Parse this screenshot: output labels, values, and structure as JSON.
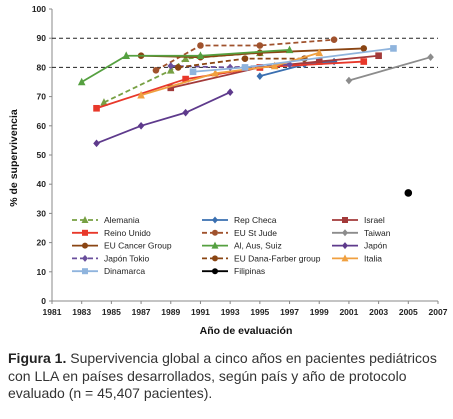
{
  "caption": {
    "label": "Figura 1.",
    "text": "Supervivencia global a cinco años en pacientes pediátricos con LLA en países desarrollados, según país y año de protocolo evaluado (n = 45,407 pacientes)."
  },
  "chart_data": {
    "type": "line",
    "xlabel": "Año de evaluación",
    "ylabel": "% de supervivencia",
    "xlim": [
      1981,
      2007
    ],
    "ylim": [
      0,
      100
    ],
    "xticks": [
      1981,
      1983,
      1985,
      1987,
      1989,
      1991,
      1993,
      1995,
      1997,
      1999,
      2001,
      2003,
      2005,
      2007
    ],
    "yticks": [
      0,
      10,
      20,
      30,
      40,
      50,
      60,
      70,
      80,
      90,
      100
    ],
    "xtick_labels": [
      "1981",
      "1983",
      "1985",
      "1987",
      "1989",
      "1991",
      "1993",
      "1995",
      "1997",
      "1999",
      "2001",
      "2003",
      "2005",
      "2007"
    ],
    "ytick_labels": [
      "0",
      "10",
      "20",
      "30",
      "40",
      "50",
      "60",
      "70",
      "80",
      "90",
      "100"
    ],
    "reference_lines": [
      80,
      90
    ],
    "grid": false,
    "legend": "bottom",
    "series": [
      {
        "name": "Alemania",
        "color": "#77a043",
        "dash": true,
        "marker": "triangle",
        "x": [
          1984.5,
          1989,
          1990,
          1995
        ],
        "y": [
          68,
          79,
          83,
          85
        ]
      },
      {
        "name": "Rep Checa",
        "color": "#3a6fb0",
        "dash": false,
        "marker": "diamond",
        "x": [
          1995,
          1998,
          2000
        ],
        "y": [
          77,
          81,
          82
        ]
      },
      {
        "name": "Israel",
        "color": "#a33a3a",
        "dash": false,
        "marker": "square",
        "x": [
          1989,
          1995,
          1999,
          2003
        ],
        "y": [
          73,
          80,
          82,
          84
        ]
      },
      {
        "name": "Reino Unido",
        "color": "#e8382a",
        "dash": false,
        "marker": "square",
        "x": [
          1984,
          1990,
          1995,
          2002
        ],
        "y": [
          66,
          76,
          80,
          82
        ]
      },
      {
        "name": "EU St Jude",
        "color": "#a0522d",
        "dash": true,
        "marker": "circle",
        "x": [
          1988,
          1991,
          1995,
          2000
        ],
        "y": [
          79,
          87.5,
          87.5,
          89.5
        ]
      },
      {
        "name": "Taiwan",
        "color": "#8c8c8c",
        "dash": false,
        "marker": "diamond",
        "x": [
          2001,
          2006.5
        ],
        "y": [
          75.5,
          83.5
        ]
      },
      {
        "name": "EU Cancer Group",
        "color": "#8a4513",
        "dash": false,
        "marker": "circle",
        "x": [
          1987,
          1991,
          1995,
          2002
        ],
        "y": [
          84,
          83.5,
          85,
          86.5
        ]
      },
      {
        "name": "Al, Aus, Suiz",
        "color": "#55a040",
        "dash": false,
        "marker": "triangle",
        "x": [
          1983,
          1986,
          1991,
          1997
        ],
        "y": [
          75,
          84,
          84,
          86
        ]
      },
      {
        "name": "Japón",
        "color": "#5e3a8c",
        "dash": false,
        "marker": "diamond",
        "x": [
          1984,
          1987,
          1990,
          1993
        ],
        "y": [
          54,
          60,
          64.5,
          71.5
        ]
      },
      {
        "name": "Japón Tokio",
        "color": "#6a4f9c",
        "dash": true,
        "marker": "diamond",
        "x": [
          1989,
          1993,
          1997
        ],
        "y": [
          80.5,
          80,
          81
        ]
      },
      {
        "name": "EU Dana-Farber group",
        "color": "#8a4513",
        "dash": true,
        "marker": "circle",
        "x": [
          1989.5,
          1994,
          1998
        ],
        "y": [
          80,
          83,
          83
        ]
      },
      {
        "name": "Italia",
        "color": "#f0a040",
        "dash": false,
        "marker": "triangle",
        "x": [
          1987,
          1992,
          1996,
          1999
        ],
        "y": [
          70.5,
          78,
          80.5,
          85
        ]
      },
      {
        "name": "Dinamarca",
        "color": "#8fb4dd",
        "dash": false,
        "marker": "square",
        "x": [
          1990.5,
          1994,
          2004
        ],
        "y": [
          78.5,
          80,
          86.5
        ]
      },
      {
        "name": "Filipinas",
        "color": "#000000",
        "dash": false,
        "marker": "circle",
        "x": [
          2005
        ],
        "y": [
          37
        ]
      }
    ]
  }
}
